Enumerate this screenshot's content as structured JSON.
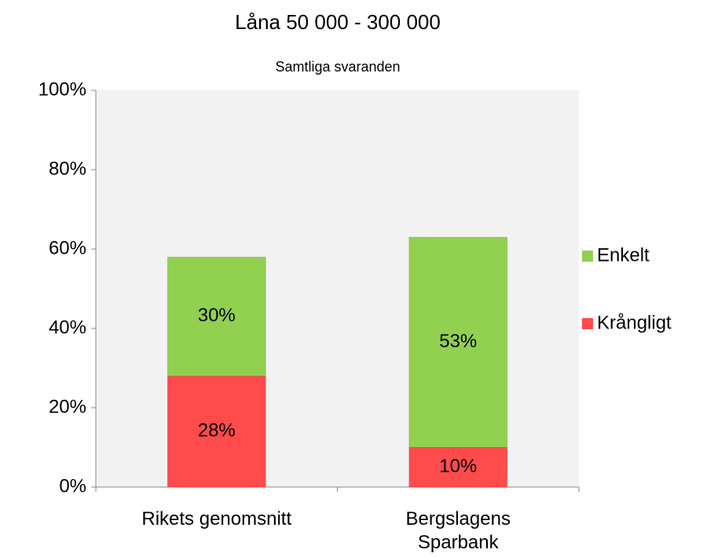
{
  "chart_data": {
    "type": "stacked_bar",
    "title": "Låna 50 000 - 300 000",
    "subtitle": "Samtliga svaranden",
    "categories": [
      "Rikets genomsnitt",
      "Bergslagens Sparbank"
    ],
    "series": [
      {
        "name": "Krångligt",
        "color": "#ff4b4b",
        "values": [
          28,
          10
        ],
        "value_labels": [
          "28%",
          "10%"
        ]
      },
      {
        "name": "Enkelt",
        "color": "#92d050",
        "values": [
          30,
          53
        ],
        "value_labels": [
          "30%",
          "53%"
        ]
      }
    ],
    "ylim": [
      0,
      100
    ],
    "yticks": [
      {
        "value": 0,
        "label": "0%"
      },
      {
        "value": 20,
        "label": "20%"
      },
      {
        "value": 40,
        "label": "40%"
      },
      {
        "value": 60,
        "label": "60%"
      },
      {
        "value": 80,
        "label": "80%"
      },
      {
        "value": 100,
        "label": "100%"
      }
    ],
    "legend": "right",
    "plot_background": "#f2f2f2"
  }
}
